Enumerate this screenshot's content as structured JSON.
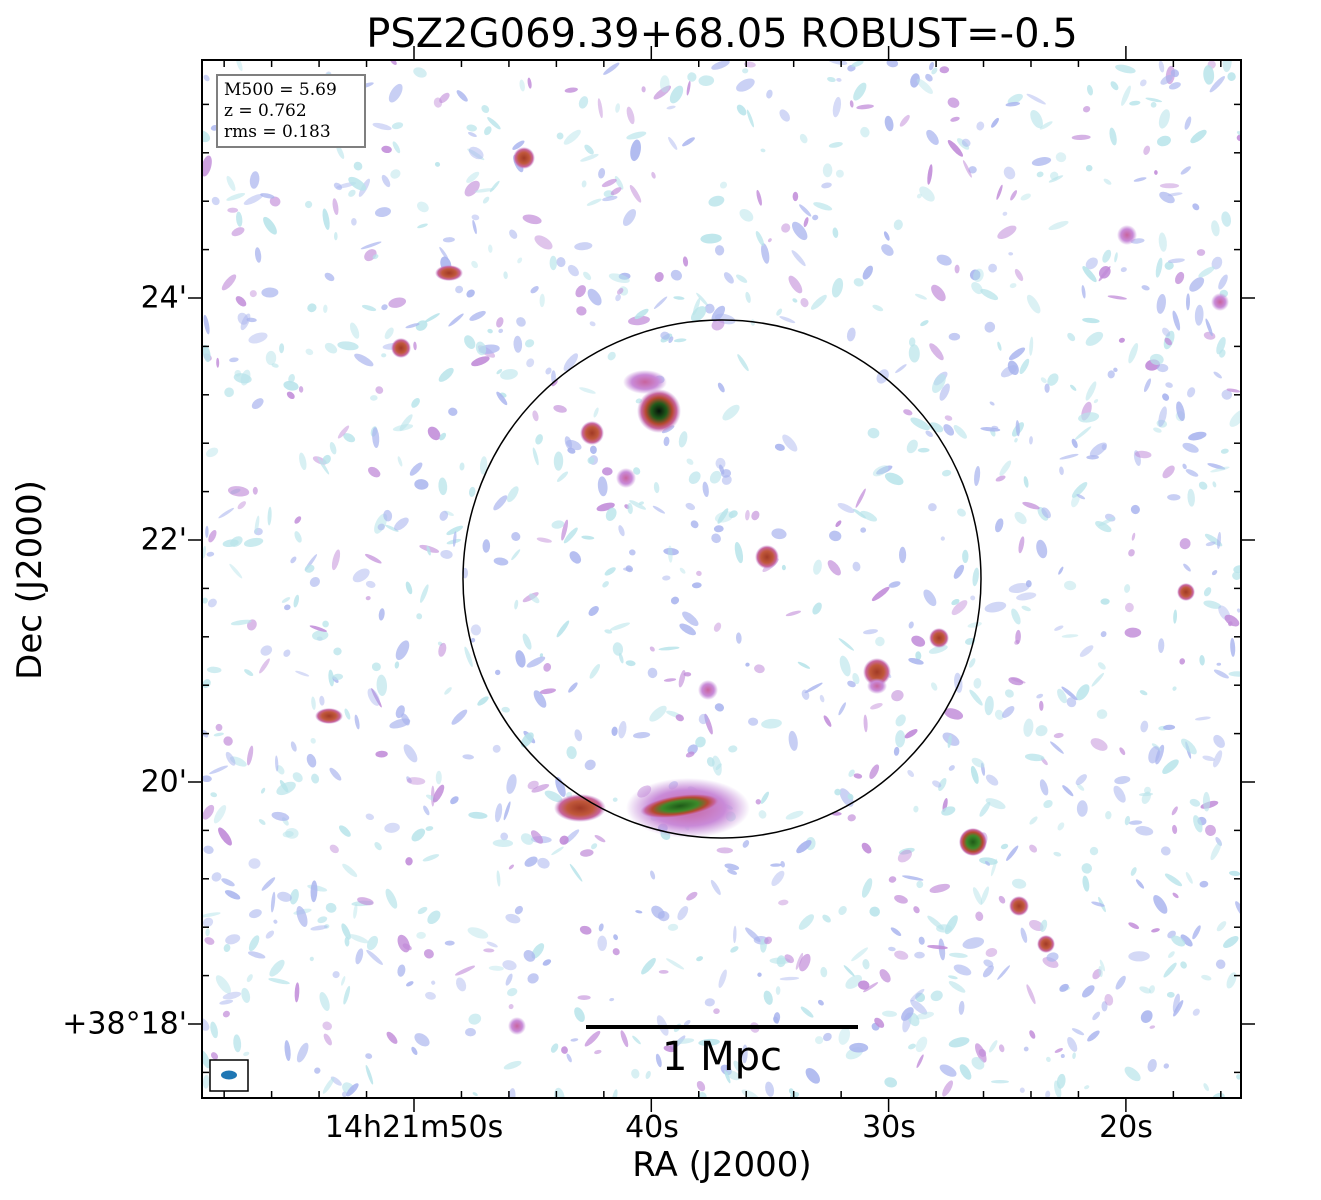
{
  "title": "PSZ2G069.39+68.05 ROBUST=-0.5",
  "axes": {
    "xlabel": "RA (J2000)",
    "ylabel": "Dec (J2000)",
    "xticks": [
      "14h21m50s",
      "40s",
      "30s",
      "20s"
    ],
    "yticks": [
      "24'",
      "22'",
      "20'",
      "+38°18'"
    ]
  },
  "info_box": {
    "line1": "M500 = 5.69",
    "line2": "z = 0.762",
    "line3": "rms = 0.183"
  },
  "scale_bar": {
    "label": "1 Mpc"
  },
  "colors": {
    "noise_light": "#b8e4ea",
    "noise_blue": "#a9b4ee",
    "noise_purple": "#c08ad8",
    "source_magenta": "#c8649e",
    "source_red": "#b5482e",
    "source_green": "#2f7a24",
    "source_core": "#0a1a10",
    "beam": "#1f77b4"
  }
}
